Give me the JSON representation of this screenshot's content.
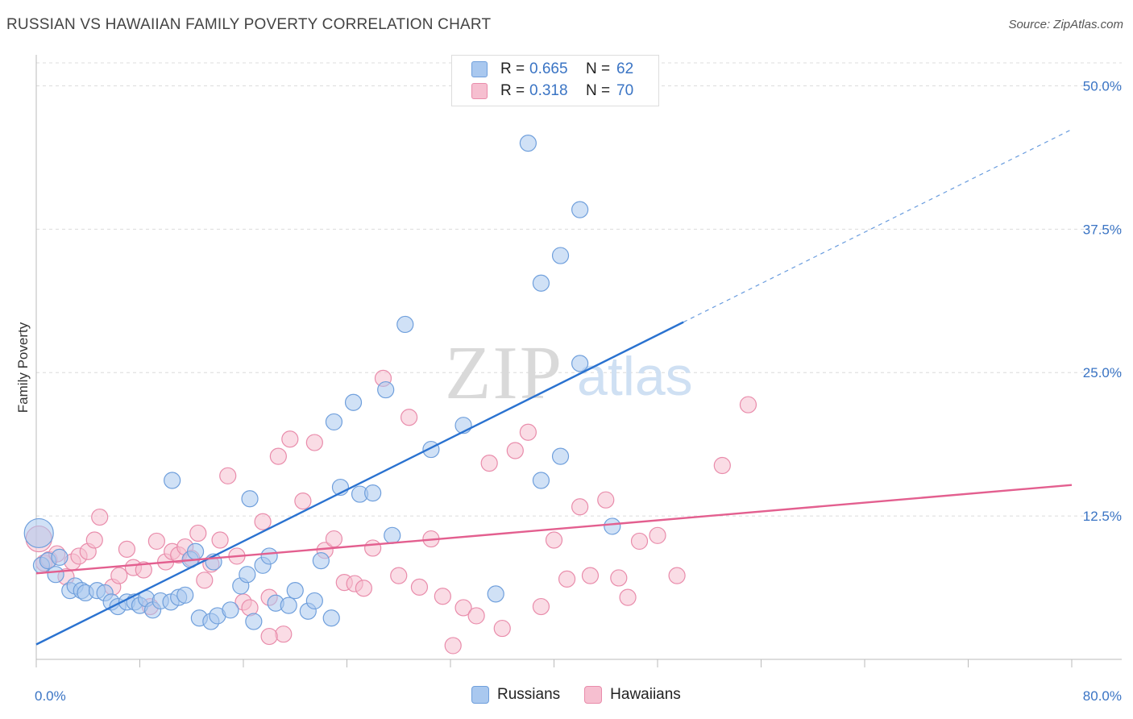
{
  "title": "RUSSIAN VS HAWAIIAN FAMILY POVERTY CORRELATION CHART",
  "source": "Source: ZipAtlas.com",
  "watermark": {
    "zip": "ZIP",
    "atlas": "atlas"
  },
  "colors": {
    "russians_fill": "#a9c8ef",
    "russians_stroke": "#6f9fdc",
    "russians_line": "#2a72d0",
    "hawaiians_fill": "#f6bfd0",
    "hawaiians_stroke": "#e98cab",
    "hawaiians_line": "#e35f8f",
    "tick_label": "#3a74c4"
  },
  "legend": {
    "rows": [
      {
        "r_label": "R =",
        "r_value": "0.665",
        "n_label": "N =",
        "n_value": "62"
      },
      {
        "r_label": "R =",
        "r_value": "0.318",
        "n_label": "N =",
        "n_value": "70"
      }
    ]
  },
  "bottom_legend": [
    "Russians",
    "Hawaiians"
  ],
  "chart_data": {
    "type": "scatter",
    "title": "RUSSIAN VS HAWAIIAN FAMILY POVERTY CORRELATION CHART",
    "xlabel": "",
    "ylabel": "Family Poverty",
    "xlim": [
      0,
      80
    ],
    "ylim": [
      0,
      52
    ],
    "x_tick_labels": [
      "0.0%",
      "80.0%"
    ],
    "y_ticks": [
      12.5,
      25.0,
      37.5,
      50.0
    ],
    "y_tick_labels": [
      "12.5%",
      "25.0%",
      "37.5%",
      "50.0%"
    ],
    "grid": true,
    "legend_position": "top-center",
    "series": [
      {
        "name": "Russians",
        "r": 0.665,
        "n": 62,
        "trend": {
          "x": [
            0,
            50
          ],
          "y": [
            1.3,
            29.4
          ],
          "dashed_to": [
            80,
            46.2
          ]
        },
        "points": [
          [
            0.2,
            11.0,
            18
          ],
          [
            0.4,
            8.2,
            10
          ],
          [
            0.9,
            8.6,
            10
          ],
          [
            1.5,
            7.4,
            10
          ],
          [
            1.8,
            8.9,
            10
          ],
          [
            2.6,
            6.0,
            10
          ],
          [
            3.0,
            6.4,
            10
          ],
          [
            3.5,
            6.0,
            10
          ],
          [
            3.8,
            5.8,
            10
          ],
          [
            4.7,
            6.0,
            10
          ],
          [
            5.3,
            5.8,
            10
          ],
          [
            5.8,
            5.0,
            10
          ],
          [
            6.3,
            4.6,
            10
          ],
          [
            7.0,
            5.0,
            10
          ],
          [
            7.6,
            5.0,
            10
          ],
          [
            8.0,
            4.7,
            10
          ],
          [
            8.5,
            5.3,
            10
          ],
          [
            9.0,
            4.3,
            10
          ],
          [
            9.6,
            5.1,
            10
          ],
          [
            10.4,
            5.0,
            10
          ],
          [
            11.0,
            5.4,
            10
          ],
          [
            11.5,
            5.6,
            10
          ],
          [
            11.9,
            8.7,
            10
          ],
          [
            12.3,
            9.4,
            10
          ],
          [
            13.7,
            8.5,
            10
          ],
          [
            12.6,
            3.6,
            10
          ],
          [
            13.5,
            3.3,
            10
          ],
          [
            14.0,
            3.8,
            10
          ],
          [
            15.0,
            4.3,
            10
          ],
          [
            15.8,
            6.4,
            10
          ],
          [
            16.3,
            7.4,
            10
          ],
          [
            16.8,
            3.3,
            10
          ],
          [
            17.5,
            8.2,
            10
          ],
          [
            18.0,
            9.0,
            10
          ],
          [
            18.5,
            4.9,
            10
          ],
          [
            19.5,
            4.7,
            10
          ],
          [
            20.0,
            6.0,
            10
          ],
          [
            21.0,
            4.2,
            10
          ],
          [
            21.5,
            5.1,
            10
          ],
          [
            22.0,
            8.6,
            10
          ],
          [
            22.8,
            3.6,
            10
          ],
          [
            23.5,
            15.0,
            10
          ],
          [
            25.0,
            14.4,
            10
          ],
          [
            26.0,
            14.5,
            10
          ],
          [
            27.5,
            10.8,
            10
          ],
          [
            23.0,
            20.7,
            10
          ],
          [
            24.5,
            22.4,
            10
          ],
          [
            27.0,
            23.5,
            10
          ],
          [
            30.5,
            18.3,
            10
          ],
          [
            33.0,
            20.4,
            10
          ],
          [
            35.5,
            5.7,
            10
          ],
          [
            39.0,
            15.6,
            10
          ],
          [
            40.5,
            17.7,
            10
          ],
          [
            28.5,
            29.2,
            10
          ],
          [
            39.0,
            32.8,
            10
          ],
          [
            38.0,
            45.0,
            10
          ],
          [
            42.0,
            39.2,
            10
          ],
          [
            40.5,
            35.2,
            10
          ],
          [
            42.0,
            25.8,
            10
          ],
          [
            44.5,
            11.6,
            10
          ],
          [
            10.5,
            15.6,
            10
          ],
          [
            16.5,
            14.0,
            10
          ]
        ]
      },
      {
        "name": "Hawaiians",
        "r": 0.318,
        "n": 70,
        "trend": {
          "x": [
            0,
            80
          ],
          "y": [
            7.5,
            15.2
          ]
        },
        "points": [
          [
            0.2,
            10.5,
            16
          ],
          [
            0.6,
            8.4,
            10
          ],
          [
            1.0,
            8.7,
            10
          ],
          [
            1.6,
            9.2,
            10
          ],
          [
            2.3,
            7.2,
            10
          ],
          [
            2.8,
            8.5,
            10
          ],
          [
            3.3,
            9.0,
            10
          ],
          [
            4.0,
            9.4,
            10
          ],
          [
            4.5,
            10.4,
            10
          ],
          [
            4.9,
            12.4,
            10
          ],
          [
            5.9,
            6.3,
            10
          ],
          [
            6.4,
            7.3,
            10
          ],
          [
            7.0,
            9.6,
            10
          ],
          [
            7.5,
            8.0,
            10
          ],
          [
            8.3,
            7.8,
            10
          ],
          [
            8.8,
            4.6,
            10
          ],
          [
            9.3,
            10.3,
            10
          ],
          [
            10.0,
            8.5,
            10
          ],
          [
            10.5,
            9.4,
            10
          ],
          [
            11.0,
            9.1,
            10
          ],
          [
            11.5,
            9.8,
            10
          ],
          [
            12.0,
            8.8,
            10
          ],
          [
            12.5,
            11.0,
            10
          ],
          [
            13.0,
            6.9,
            10
          ],
          [
            13.5,
            8.3,
            10
          ],
          [
            14.2,
            10.4,
            10
          ],
          [
            14.8,
            16.0,
            10
          ],
          [
            15.5,
            9.0,
            10
          ],
          [
            16.0,
            5.0,
            10
          ],
          [
            16.5,
            4.5,
            10
          ],
          [
            17.5,
            12.0,
            10
          ],
          [
            18.0,
            5.4,
            10
          ],
          [
            18.7,
            17.7,
            10
          ],
          [
            19.6,
            19.2,
            10
          ],
          [
            19.1,
            2.2,
            10
          ],
          [
            20.6,
            13.8,
            10
          ],
          [
            21.5,
            18.9,
            10
          ],
          [
            22.3,
            9.5,
            10
          ],
          [
            23.0,
            10.5,
            10
          ],
          [
            23.8,
            6.7,
            10
          ],
          [
            24.6,
            6.6,
            10
          ],
          [
            25.3,
            6.2,
            10
          ],
          [
            26.0,
            9.7,
            10
          ],
          [
            26.8,
            24.5,
            10
          ],
          [
            28.0,
            7.3,
            10
          ],
          [
            28.8,
            21.1,
            10
          ],
          [
            29.6,
            6.3,
            10
          ],
          [
            30.5,
            10.5,
            10
          ],
          [
            31.4,
            5.5,
            10
          ],
          [
            32.2,
            1.2,
            10
          ],
          [
            33.0,
            4.5,
            10
          ],
          [
            34.0,
            3.8,
            10
          ],
          [
            35.0,
            17.1,
            10
          ],
          [
            36.0,
            2.7,
            10
          ],
          [
            37.0,
            18.2,
            10
          ],
          [
            38.0,
            19.8,
            10
          ],
          [
            39.0,
            4.6,
            10
          ],
          [
            40.0,
            10.4,
            10
          ],
          [
            41.0,
            7.0,
            10
          ],
          [
            42.0,
            13.3,
            10
          ],
          [
            42.8,
            7.3,
            10
          ],
          [
            44.0,
            13.9,
            10
          ],
          [
            45.0,
            7.1,
            10
          ],
          [
            45.7,
            5.4,
            10
          ],
          [
            46.6,
            10.3,
            10
          ],
          [
            48.0,
            10.8,
            10
          ],
          [
            49.5,
            7.3,
            10
          ],
          [
            53.0,
            16.9,
            10
          ],
          [
            55.0,
            22.2,
            10
          ],
          [
            18.0,
            2.0,
            10
          ]
        ]
      }
    ]
  }
}
